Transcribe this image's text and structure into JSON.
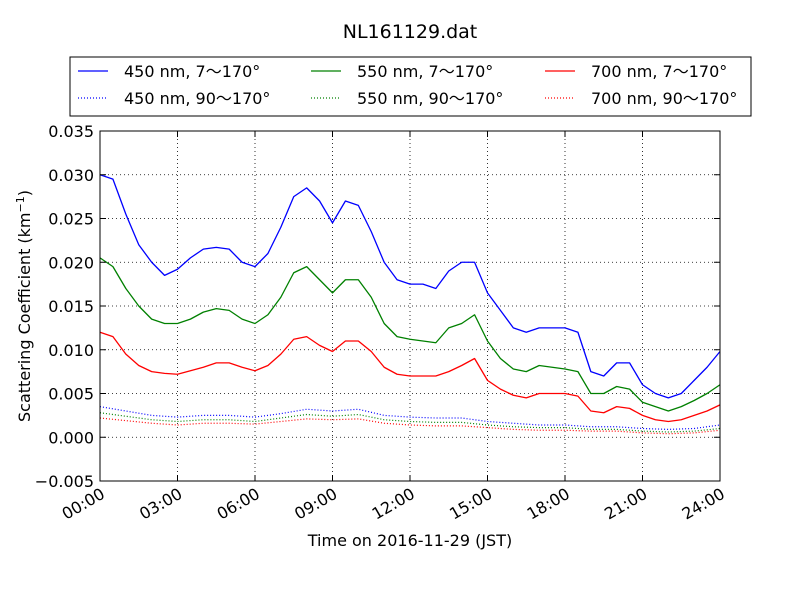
{
  "chart_data": {
    "type": "line",
    "title": "NL161129.dat",
    "xlabel": "Time on 2016-11-29 (JST)",
    "ylabel_main": "Scattering Coefficient (km",
    "ylabel_exp": "−1",
    "ylabel_close": ")",
    "xlim": [
      0,
      24
    ],
    "ylim": [
      -0.005,
      0.035
    ],
    "x_ticks": [
      {
        "value": 0,
        "label": "00:00"
      },
      {
        "value": 3,
        "label": "03:00"
      },
      {
        "value": 6,
        "label": "06:00"
      },
      {
        "value": 9,
        "label": "09:00"
      },
      {
        "value": 12,
        "label": "12:00"
      },
      {
        "value": 15,
        "label": "15:00"
      },
      {
        "value": 18,
        "label": "18:00"
      },
      {
        "value": 21,
        "label": "21:00"
      },
      {
        "value": 24,
        "label": "24:00"
      }
    ],
    "y_ticks": [
      {
        "value": 0.035,
        "label": "0.035"
      },
      {
        "value": 0.03,
        "label": "0.030"
      },
      {
        "value": 0.025,
        "label": "0.025"
      },
      {
        "value": 0.02,
        "label": "0.020"
      },
      {
        "value": 0.015,
        "label": "0.015"
      },
      {
        "value": 0.01,
        "label": "0.010"
      },
      {
        "value": 0.005,
        "label": "0.005"
      },
      {
        "value": 0.0,
        "label": "0.000"
      },
      {
        "value": -0.005,
        "label": "−0.005"
      }
    ],
    "grid": true,
    "legend_position": "top",
    "series": [
      {
        "name": "450 nm, 7～170°",
        "color": "#0000ff",
        "style": "solid",
        "x": [
          0,
          0.5,
          1,
          1.5,
          2,
          2.5,
          3,
          3.5,
          4,
          4.5,
          5,
          5.5,
          6,
          6.5,
          7,
          7.5,
          8,
          8.5,
          9,
          9.5,
          10,
          10.5,
          11,
          11.5,
          12,
          12.5,
          13,
          13.5,
          14,
          14.5,
          15,
          15.5,
          16,
          16.5,
          17,
          17.5,
          18,
          18.5,
          19,
          19.5,
          20,
          20.5,
          21,
          21.5,
          22,
          22.5,
          23,
          23.5,
          24
        ],
        "y": [
          0.03,
          0.0295,
          0.0255,
          0.022,
          0.02,
          0.0185,
          0.0192,
          0.0205,
          0.0215,
          0.0217,
          0.0215,
          0.02,
          0.0195,
          0.021,
          0.024,
          0.0275,
          0.0285,
          0.027,
          0.0245,
          0.027,
          0.0265,
          0.0235,
          0.02,
          0.018,
          0.0175,
          0.0175,
          0.017,
          0.019,
          0.02,
          0.02,
          0.0165,
          0.0145,
          0.0125,
          0.012,
          0.0125,
          0.0125,
          0.0125,
          0.012,
          0.0075,
          0.007,
          0.0085,
          0.0085,
          0.006,
          0.005,
          0.0045,
          0.005,
          0.0065,
          0.008,
          0.0098
        ]
      },
      {
        "name": "550 nm, 7～170°",
        "color": "#008000",
        "style": "solid",
        "x": [
          0,
          0.5,
          1,
          1.5,
          2,
          2.5,
          3,
          3.5,
          4,
          4.5,
          5,
          5.5,
          6,
          6.5,
          7,
          7.5,
          8,
          8.5,
          9,
          9.5,
          10,
          10.5,
          11,
          11.5,
          12,
          12.5,
          13,
          13.5,
          14,
          14.5,
          15,
          15.5,
          16,
          16.5,
          17,
          17.5,
          18,
          18.5,
          19,
          19.5,
          20,
          20.5,
          21,
          21.5,
          22,
          22.5,
          23,
          23.5,
          24
        ],
        "y": [
          0.0205,
          0.0195,
          0.017,
          0.015,
          0.0135,
          0.013,
          0.013,
          0.0135,
          0.0143,
          0.0147,
          0.0145,
          0.0135,
          0.013,
          0.014,
          0.016,
          0.0188,
          0.0195,
          0.018,
          0.0165,
          0.018,
          0.018,
          0.016,
          0.013,
          0.0115,
          0.0112,
          0.011,
          0.0108,
          0.0125,
          0.013,
          0.014,
          0.011,
          0.009,
          0.0078,
          0.0075,
          0.0082,
          0.008,
          0.0078,
          0.0075,
          0.005,
          0.005,
          0.0058,
          0.0055,
          0.004,
          0.0035,
          0.003,
          0.0035,
          0.0042,
          0.005,
          0.006
        ]
      },
      {
        "name": "700 nm, 7～170°",
        "color": "#ff0000",
        "style": "solid",
        "x": [
          0,
          0.5,
          1,
          1.5,
          2,
          2.5,
          3,
          3.5,
          4,
          4.5,
          5,
          5.5,
          6,
          6.5,
          7,
          7.5,
          8,
          8.5,
          9,
          9.5,
          10,
          10.5,
          11,
          11.5,
          12,
          12.5,
          13,
          13.5,
          14,
          14.5,
          15,
          15.5,
          16,
          16.5,
          17,
          17.5,
          18,
          18.5,
          19,
          19.5,
          20,
          20.5,
          21,
          21.5,
          22,
          22.5,
          23,
          23.5,
          24
        ],
        "y": [
          0.012,
          0.0115,
          0.0095,
          0.0082,
          0.0075,
          0.0073,
          0.0072,
          0.0076,
          0.008,
          0.0085,
          0.0085,
          0.008,
          0.0076,
          0.0082,
          0.0095,
          0.0112,
          0.0115,
          0.0105,
          0.0098,
          0.011,
          0.011,
          0.0098,
          0.008,
          0.0072,
          0.007,
          0.007,
          0.007,
          0.0075,
          0.0082,
          0.009,
          0.0065,
          0.0055,
          0.0048,
          0.0045,
          0.005,
          0.005,
          0.005,
          0.0047,
          0.003,
          0.0028,
          0.0035,
          0.0033,
          0.0025,
          0.002,
          0.0018,
          0.002,
          0.0025,
          0.003,
          0.0037
        ]
      },
      {
        "name": "450 nm, 90～170°",
        "color": "#0000ff",
        "style": "dotted",
        "x": [
          0,
          1,
          2,
          3,
          4,
          5,
          6,
          7,
          8,
          9,
          10,
          11,
          12,
          13,
          14,
          15,
          16,
          17,
          18,
          19,
          20,
          21,
          22,
          23,
          24
        ],
        "y": [
          0.0035,
          0.003,
          0.0025,
          0.0023,
          0.0025,
          0.0025,
          0.0023,
          0.0027,
          0.0032,
          0.003,
          0.0032,
          0.0025,
          0.0023,
          0.0022,
          0.0022,
          0.0018,
          0.0016,
          0.0014,
          0.0014,
          0.0012,
          0.0012,
          0.001,
          0.0009,
          0.001,
          0.0014
        ]
      },
      {
        "name": "550 nm, 90～170°",
        "color": "#008000",
        "style": "dotted",
        "x": [
          0,
          1,
          2,
          3,
          4,
          5,
          6,
          7,
          8,
          9,
          10,
          11,
          12,
          13,
          14,
          15,
          16,
          17,
          18,
          19,
          20,
          21,
          22,
          23,
          24
        ],
        "y": [
          0.0028,
          0.0024,
          0.002,
          0.0018,
          0.002,
          0.002,
          0.0018,
          0.0022,
          0.0026,
          0.0024,
          0.0026,
          0.002,
          0.0018,
          0.0017,
          0.0017,
          0.0014,
          0.0012,
          0.0011,
          0.0011,
          0.0009,
          0.0009,
          0.0007,
          0.0006,
          0.0007,
          0.001
        ]
      },
      {
        "name": "700 nm, 90～170°",
        "color": "#ff0000",
        "style": "dotted",
        "x": [
          0,
          1,
          2,
          3,
          4,
          5,
          6,
          7,
          8,
          9,
          10,
          11,
          12,
          13,
          14,
          15,
          16,
          17,
          18,
          19,
          20,
          21,
          22,
          23,
          24
        ],
        "y": [
          0.0022,
          0.0019,
          0.0016,
          0.0014,
          0.0016,
          0.0016,
          0.0015,
          0.0018,
          0.0021,
          0.002,
          0.0021,
          0.0016,
          0.0014,
          0.0013,
          0.0013,
          0.0011,
          0.0009,
          0.0008,
          0.0008,
          0.0007,
          0.0007,
          0.0005,
          0.0004,
          0.0005,
          0.0008
        ]
      }
    ]
  }
}
